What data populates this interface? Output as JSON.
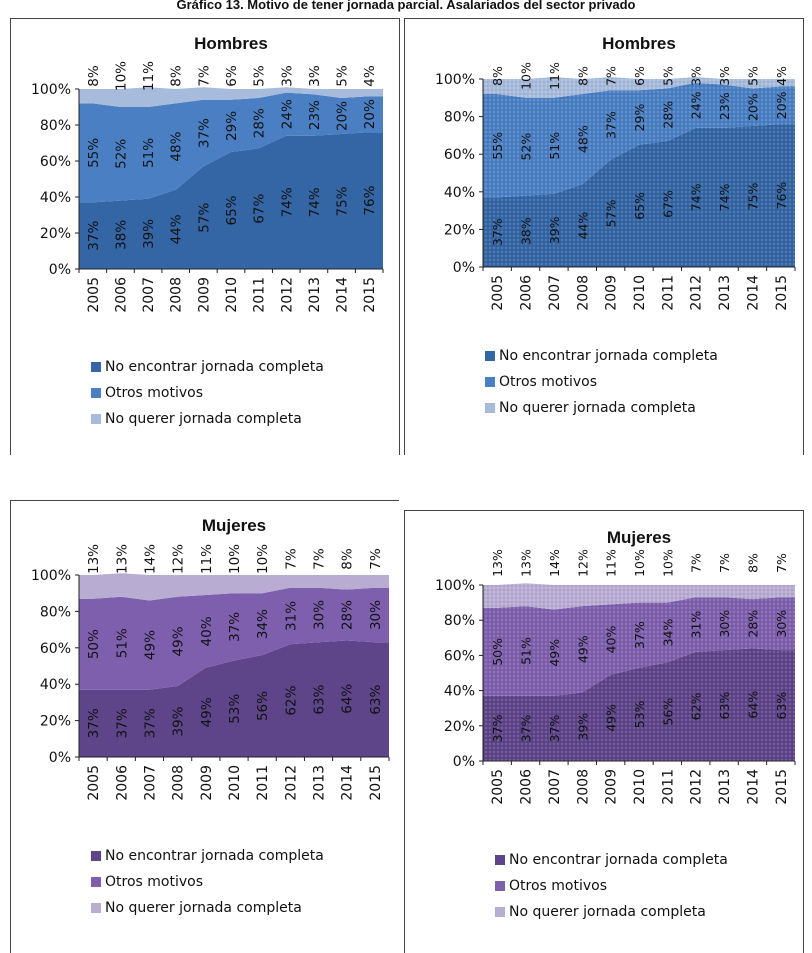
{
  "page": {
    "title": "Gráfico 13. Motivo de tener jornada parcial. Asalariados del sector privado"
  },
  "legend_labels": [
    "No encontrar  jornada completa",
    "Otros motivos",
    "No querer jornada completa"
  ],
  "colors": {
    "hombres": [
      "#3465a4",
      "#4a7fc4",
      "#a7bbdc"
    ],
    "mujeres": [
      "#5e4489",
      "#7e5fae",
      "#b8acd2"
    ]
  },
  "chart_data": [
    {
      "type": "area",
      "title": "Hombres",
      "stacked": true,
      "x": [
        "2005",
        "2006",
        "2007",
        "2008",
        "2009",
        "2010",
        "2011",
        "2012",
        "2013",
        "2014",
        "2015"
      ],
      "ylim": [
        0,
        100
      ],
      "yticks": [
        "0%",
        "20%",
        "40%",
        "60%",
        "80%",
        "100%"
      ],
      "series": [
        {
          "name": "No encontrar  jornada completa",
          "values": [
            37,
            38,
            39,
            44,
            57,
            65,
            67,
            74,
            74,
            75,
            76
          ],
          "labels": [
            "37%",
            "38%",
            "39%",
            "44%",
            "57%",
            "65%",
            "67%",
            "74%",
            "74%",
            "75%",
            "76%"
          ]
        },
        {
          "name": "Otros motivos",
          "values": [
            55,
            52,
            51,
            48,
            37,
            29,
            28,
            24,
            23,
            20,
            20
          ],
          "labels": [
            "55%",
            "52%",
            "51%",
            "48%",
            "37%",
            "29%",
            "28%",
            "24%",
            "23%",
            "20%",
            "20%"
          ]
        },
        {
          "name": "No querer jornada completa",
          "values": [
            8,
            10,
            11,
            8,
            7,
            6,
            5,
            3,
            3,
            5,
            4
          ],
          "labels": [
            "8%",
            "10%",
            "11%",
            "8%",
            "7%",
            "6%",
            "5%",
            "3%",
            "3%",
            "5%",
            "4%"
          ]
        }
      ]
    },
    {
      "type": "area",
      "title": "Mujeres",
      "stacked": true,
      "x": [
        "2005",
        "2006",
        "2007",
        "2008",
        "2009",
        "2010",
        "2011",
        "2012",
        "2013",
        "2014",
        "2015"
      ],
      "ylim": [
        0,
        100
      ],
      "yticks": [
        "0%",
        "20%",
        "40%",
        "60%",
        "80%",
        "100%"
      ],
      "series": [
        {
          "name": "No encontrar  jornada completa",
          "values": [
            37,
            37,
            37,
            39,
            49,
            53,
            56,
            62,
            63,
            64,
            63
          ],
          "labels": [
            "37%",
            "37%",
            "37%",
            "39%",
            "49%",
            "53%",
            "56%",
            "62%",
            "63%",
            "64%",
            "63%"
          ]
        },
        {
          "name": "Otros motivos",
          "values": [
            50,
            51,
            49,
            49,
            40,
            37,
            34,
            31,
            30,
            28,
            30
          ],
          "labels": [
            "50%",
            "51%",
            "49%",
            "49%",
            "40%",
            "37%",
            "34%",
            "31%",
            "30%",
            "28%",
            "30%"
          ]
        },
        {
          "name": "No querer jornada completa",
          "values": [
            13,
            13,
            14,
            12,
            11,
            10,
            10,
            7,
            7,
            8,
            7
          ],
          "labels": [
            "13%",
            "13%",
            "14%",
            "12%",
            "11%",
            "10%",
            "10%",
            "7%",
            "7%",
            "8%",
            "7%"
          ]
        }
      ]
    }
  ]
}
